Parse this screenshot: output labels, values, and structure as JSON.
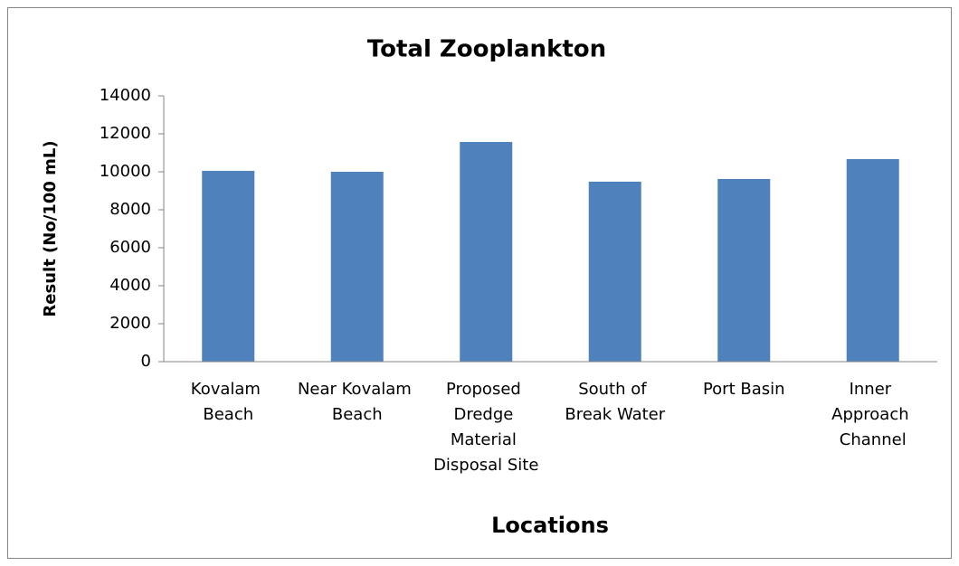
{
  "chart_data": {
    "type": "bar",
    "title": "Total Zooplankton",
    "x_label": "Locations",
    "y_label": "Result (No/100 mL)",
    "categories": [
      "Kovalam Beach",
      "Near Kovalam Beach",
      "Proposed Dredge Material Disposal Site",
      "South of Break Water",
      "Port Basin",
      "Inner Approach Channel"
    ],
    "values": [
      10050,
      10000,
      11570,
      9480,
      9620,
      10670
    ],
    "color": "#4f81bd",
    "ylim": [
      0,
      14000
    ],
    "yticks": [
      0,
      2000,
      4000,
      6000,
      8000,
      10000,
      12000,
      14000
    ],
    "grid": false
  }
}
